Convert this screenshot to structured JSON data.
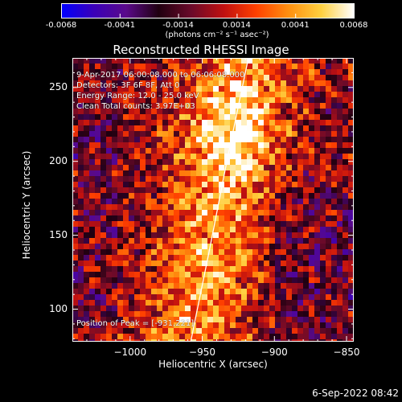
{
  "colorbar": {
    "min": -0.0068,
    "max": 0.0068,
    "tick_labels": [
      "-0.0068",
      "-0.0041",
      "-0.0014",
      "0.0014",
      "0.0041",
      "0.0068"
    ],
    "unit_label": "(photons cm⁻² s⁻¹ asec⁻²)",
    "colormap_stops": [
      "#0000ff",
      "#3a00b8",
      "#5a0a8a",
      "#200010",
      "#6a0a2a",
      "#c01010",
      "#ff4000",
      "#ff9010",
      "#ffd040",
      "#ffffff"
    ]
  },
  "chart_data": {
    "type": "heatmap",
    "title": "Reconstructed RHESSI Image",
    "xlabel": "Heliocentric X (arcsec)",
    "ylabel": "Heliocentric Y (arcsec)",
    "xlim": [
      -1040,
      -845
    ],
    "ylim": [
      78,
      270
    ],
    "x_ticks": [
      -1000,
      -950,
      -900,
      -850
    ],
    "x_tick_labels": [
      "−1000",
      "−950",
      "−900",
      "−850"
    ],
    "y_ticks": [
      100,
      150,
      200,
      250
    ],
    "y_tick_labels": [
      "100",
      "150",
      "200",
      "250"
    ],
    "peak_position": [
      -931,
      221
    ],
    "limb_line": [
      [
        -958,
        78
      ],
      [
        -945,
        140
      ],
      [
        -933,
        200
      ],
      [
        -918,
        270
      ]
    ]
  },
  "annotations": {
    "time_range": "9-Apr-2017 06:00:08.000 to 06:06:08.000",
    "detectors": "Detectors: 3F 6F 8F, Att 0",
    "energy_range": "Energy Range: 12.0 - 25.0 keV",
    "clean": "Clean     Total counts: 3.97E+03",
    "peak": "Position of Peak = [-931,221]"
  },
  "footer": {
    "date_stamp": "6-Sep-2022 08:42"
  }
}
